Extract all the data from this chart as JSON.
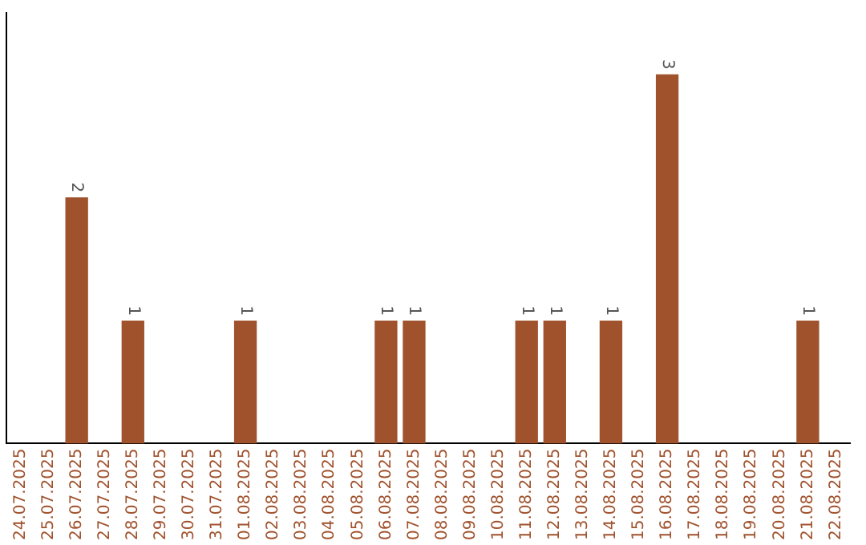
{
  "chart_data": {
    "type": "bar",
    "categories": [
      "24.07.2025",
      "25.07.2025",
      "26.07.2025",
      "27.07.2025",
      "28.07.2025",
      "29.07.2025",
      "30.07.2025",
      "31.07.2025",
      "01.08.2025",
      "02.08.2025",
      "03.08.2025",
      "04.08.2025",
      "05.08.2025",
      "06.08.2025",
      "07.08.2025",
      "08.08.2025",
      "09.08.2025",
      "10.08.2025",
      "11.08.2025",
      "12.08.2025",
      "13.08.2025",
      "14.08.2025",
      "15.08.2025",
      "16.08.2025",
      "17.08.2025",
      "18.08.2025",
      "19.08.2025",
      "20.08.2025",
      "21.08.2025",
      "22.08.2025"
    ],
    "values": [
      0,
      0,
      2,
      0,
      1,
      0,
      0,
      0,
      1,
      0,
      0,
      0,
      0,
      1,
      1,
      0,
      0,
      0,
      1,
      1,
      0,
      1,
      0,
      3,
      0,
      0,
      0,
      0,
      1,
      0
    ],
    "value_labels": [
      null,
      null,
      "2",
      null,
      "1",
      null,
      null,
      null,
      "1",
      null,
      null,
      null,
      null,
      "1",
      "1",
      null,
      null,
      null,
      "1",
      "1",
      null,
      "1",
      null,
      "3",
      null,
      null,
      null,
      null,
      "1",
      null
    ],
    "color": "#a0522d",
    "tick_labels": "x",
    "legend": false
  }
}
